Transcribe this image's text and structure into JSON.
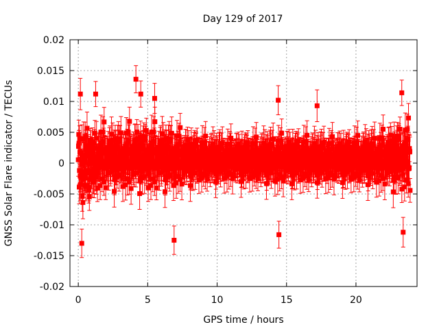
{
  "chart_data": {
    "type": "scatter",
    "title": "Day 129 of 2017",
    "xlabel": "GPS time / hours",
    "ylabel": "GNSS Solar Flare indicator / TECUs",
    "xlim": [
      -0.6,
      24.4
    ],
    "ylim": [
      -0.02,
      0.02
    ],
    "x_ticks": [
      0,
      5,
      10,
      15,
      20
    ],
    "x_tick_labels": [
      "0",
      "5",
      "10",
      "15",
      "20"
    ],
    "y_ticks": [
      -0.02,
      -0.015,
      -0.01,
      -0.005,
      0,
      0.005,
      0.01,
      0.015,
      0.02
    ],
    "y_tick_labels": [
      "-0.02",
      "-0.015",
      "-0.01",
      "-0.005",
      "0",
      "0.005",
      "0.01",
      "0.015",
      "0.02"
    ],
    "grid": true,
    "series": [
      {
        "name": "GNSS Solar Flare indicator",
        "color": "#ff0000",
        "marker": "square",
        "error_bars": true,
        "x_start": 0.0,
        "x_end": 23.9,
        "amplitude_profile": {
          "x": [
            0,
            1,
            2,
            3,
            4,
            5,
            6,
            7,
            8,
            9,
            10,
            11,
            12,
            13,
            14,
            15,
            16,
            17,
            18,
            19,
            20,
            21,
            22,
            23,
            23.9
          ],
          "std": [
            0.0042,
            0.0038,
            0.0036,
            0.0034,
            0.0038,
            0.0037,
            0.0036,
            0.0033,
            0.0028,
            0.0024,
            0.0023,
            0.0022,
            0.0023,
            0.0023,
            0.0027,
            0.0026,
            0.0025,
            0.0024,
            0.0023,
            0.0024,
            0.0024,
            0.0027,
            0.003,
            0.0038,
            0.004
          ]
        },
        "highlights": [
          {
            "x": 0.25,
            "y": -0.013
          },
          {
            "x": 0.15,
            "y": 0.0112
          },
          {
            "x": 1.25,
            "y": 0.0112
          },
          {
            "x": 4.15,
            "y": 0.0136
          },
          {
            "x": 4.5,
            "y": 0.0112
          },
          {
            "x": 5.5,
            "y": 0.0105
          },
          {
            "x": 6.9,
            "y": -0.0125
          },
          {
            "x": 14.4,
            "y": 0.0102
          },
          {
            "x": 14.45,
            "y": -0.0116
          },
          {
            "x": 17.2,
            "y": 0.0093
          },
          {
            "x": 23.3,
            "y": 0.0114
          },
          {
            "x": 23.4,
            "y": -0.0112
          }
        ]
      }
    ]
  }
}
